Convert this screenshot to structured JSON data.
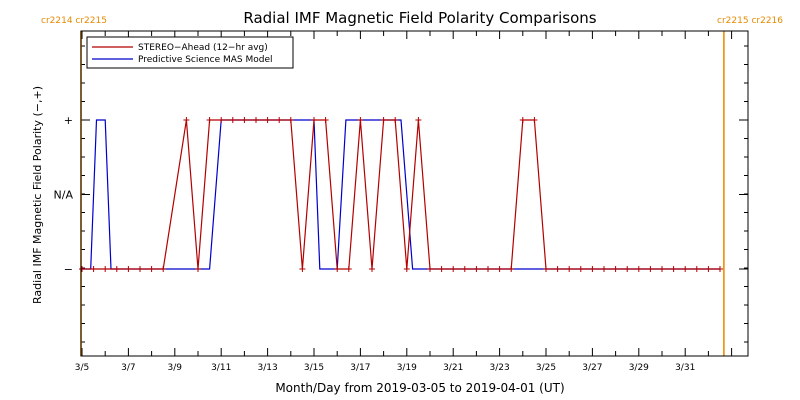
{
  "chart_data": {
    "type": "line",
    "title": "Radial IMF Magnetic Field Polarity Comparisons",
    "xlabel": "Month/Day from 2019-03-05 to 2019-04-01 (UT)",
    "ylabel": "Radial IMF Magnetic Field Polarity (−,+)",
    "x_start": "2019-03-05",
    "x_end": "2019-04-01",
    "x_tick_labels": [
      "3/5",
      "3/7",
      "3/9",
      "3/11",
      "3/13",
      "3/15",
      "3/17",
      "3/19",
      "3/21",
      "3/23",
      "3/25",
      "3/27",
      "3/29",
      "3/31"
    ],
    "y_tick_labels": [
      "+",
      "N/A",
      "−"
    ],
    "ylim": [
      -1,
      1
    ],
    "rotation_labels": {
      "left": "cr2214 cr2215",
      "right": "cr2215 cr2216"
    },
    "rotation_boundaries": [
      "2019-03-05T00:00",
      "2019-04-01T16:00"
    ],
    "legend": {
      "position": "top-left"
    },
    "series": [
      {
        "name": "STEREO−Ahead (12−hr avg)",
        "color": "#b30000",
        "markers": true,
        "points": [
          [
            "2019-03-05T00:00",
            -1
          ],
          [
            "2019-03-05T12:00",
            -1
          ],
          [
            "2019-03-06T00:00",
            -1
          ],
          [
            "2019-03-06T12:00",
            -1
          ],
          [
            "2019-03-07T00:00",
            -1
          ],
          [
            "2019-03-07T12:00",
            -1
          ],
          [
            "2019-03-08T00:00",
            -1
          ],
          [
            "2019-03-08T12:00",
            -1
          ],
          [
            "2019-03-09T12:00",
            1
          ],
          [
            "2019-03-10T00:00",
            -1
          ],
          [
            "2019-03-10T12:00",
            1
          ],
          [
            "2019-03-11T00:00",
            1
          ],
          [
            "2019-03-11T12:00",
            1
          ],
          [
            "2019-03-12T00:00",
            1
          ],
          [
            "2019-03-12T12:00",
            1
          ],
          [
            "2019-03-13T00:00",
            1
          ],
          [
            "2019-03-13T12:00",
            1
          ],
          [
            "2019-03-14T00:00",
            1
          ],
          [
            "2019-03-14T12:00",
            -1
          ],
          [
            "2019-03-15T00:00",
            1
          ],
          [
            "2019-03-15T12:00",
            1
          ],
          [
            "2019-03-16T00:00",
            -1
          ],
          [
            "2019-03-16T12:00",
            -1
          ],
          [
            "2019-03-17T00:00",
            1
          ],
          [
            "2019-03-17T12:00",
            -1
          ],
          [
            "2019-03-18T00:00",
            1
          ],
          [
            "2019-03-18T12:00",
            1
          ],
          [
            "2019-03-19T00:00",
            -1
          ],
          [
            "2019-03-19T12:00",
            1
          ],
          [
            "2019-03-20T00:00",
            -1
          ],
          [
            "2019-03-20T12:00",
            -1
          ],
          [
            "2019-03-21T00:00",
            -1
          ],
          [
            "2019-03-21T12:00",
            -1
          ],
          [
            "2019-03-22T00:00",
            -1
          ],
          [
            "2019-03-22T12:00",
            -1
          ],
          [
            "2019-03-23T00:00",
            -1
          ],
          [
            "2019-03-23T12:00",
            -1
          ],
          [
            "2019-03-24T00:00",
            1
          ],
          [
            "2019-03-24T12:00",
            1
          ],
          [
            "2019-03-25T00:00",
            -1
          ],
          [
            "2019-03-25T12:00",
            -1
          ],
          [
            "2019-03-26T00:00",
            -1
          ],
          [
            "2019-03-26T12:00",
            -1
          ],
          [
            "2019-03-27T00:00",
            -1
          ],
          [
            "2019-03-27T12:00",
            -1
          ],
          [
            "2019-03-28T00:00",
            -1
          ],
          [
            "2019-03-28T12:00",
            -1
          ],
          [
            "2019-03-29T00:00",
            -1
          ],
          [
            "2019-03-29T12:00",
            -1
          ],
          [
            "2019-03-30T00:00",
            -1
          ],
          [
            "2019-03-30T12:00",
            -1
          ],
          [
            "2019-03-31T00:00",
            -1
          ],
          [
            "2019-03-31T12:00",
            -1
          ],
          [
            "2019-04-01T00:00",
            -1
          ],
          [
            "2019-04-01T12:00",
            -1
          ]
        ]
      },
      {
        "name": "Predictive Science MAS Model",
        "color": "#0000cc",
        "markers": false,
        "points": [
          [
            "2019-03-05T00:00",
            -1
          ],
          [
            "2019-03-05T09:00",
            -1
          ],
          [
            "2019-03-05T15:00",
            1
          ],
          [
            "2019-03-06T00:00",
            1
          ],
          [
            "2019-03-06T06:00",
            -1
          ],
          [
            "2019-03-10T12:00",
            -1
          ],
          [
            "2019-03-11T00:00",
            1
          ],
          [
            "2019-03-15T00:00",
            1
          ],
          [
            "2019-03-15T06:00",
            -1
          ],
          [
            "2019-03-16T00:00",
            -1
          ],
          [
            "2019-03-16T09:00",
            1
          ],
          [
            "2019-03-18T18:00",
            1
          ],
          [
            "2019-03-19T06:00",
            -1
          ],
          [
            "2019-04-01T12:00",
            -1
          ]
        ]
      }
    ]
  }
}
